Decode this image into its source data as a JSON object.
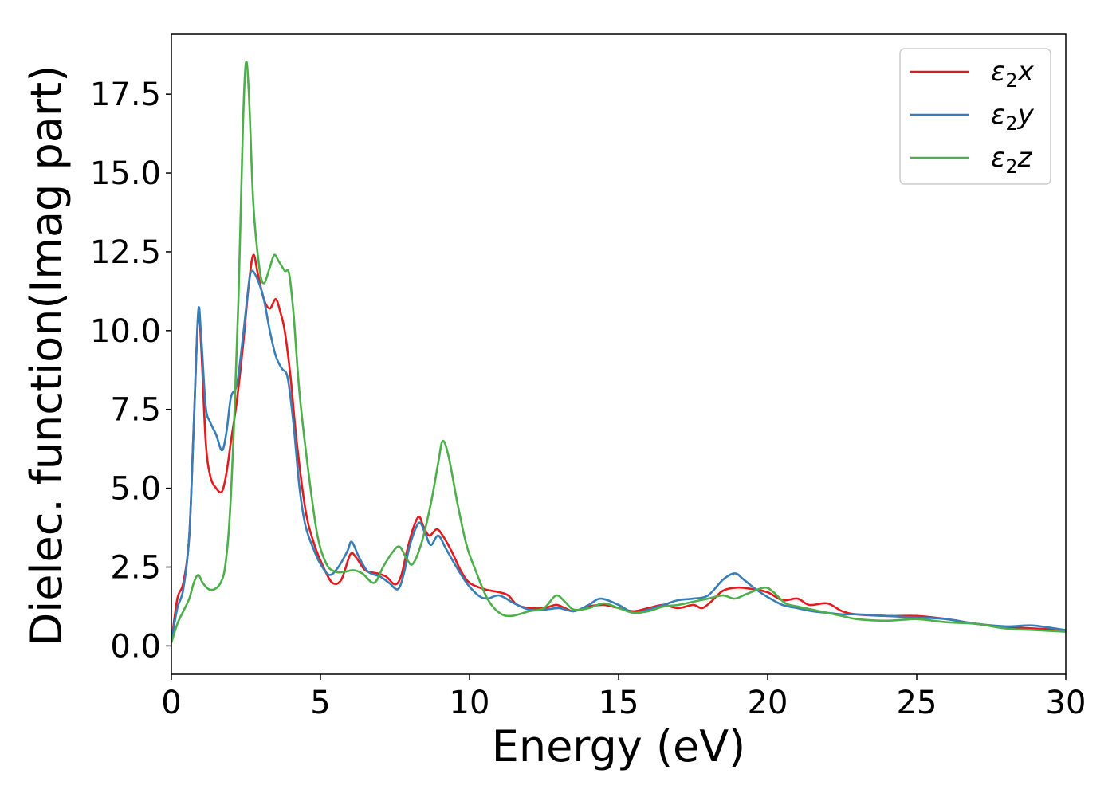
{
  "chart_data": {
    "type": "line",
    "xlabel": "Energy (eV)",
    "ylabel": "Dielec. function(Imag part)",
    "xlim": [
      0,
      30
    ],
    "ylim": [
      -0.9,
      19.4
    ],
    "xticks": [
      0,
      5,
      10,
      15,
      20,
      25,
      30
    ],
    "xtick_labels": [
      "0",
      "5",
      "10",
      "15",
      "20",
      "25",
      "30"
    ],
    "yticks": [
      0.0,
      2.5,
      5.0,
      7.5,
      10.0,
      12.5,
      15.0,
      17.5
    ],
    "ytick_labels": [
      "0.0",
      "2.5",
      "5.0",
      "7.5",
      "10.0",
      "12.5",
      "15.0",
      "17.5"
    ],
    "grid": false,
    "legend_position": "top-right",
    "series": [
      {
        "name": "ε₂x",
        "legend": {
          "base": "ε",
          "sub": "2",
          "tail": "x"
        },
        "color": "#e41a1c",
        "points": [
          [
            0,
            0.1
          ],
          [
            0.2,
            1.5
          ],
          [
            0.4,
            2.0
          ],
          [
            0.6,
            3.5
          ],
          [
            0.75,
            7.0
          ],
          [
            0.9,
            10.5
          ],
          [
            1.0,
            9.5
          ],
          [
            1.15,
            6.5
          ],
          [
            1.3,
            5.4
          ],
          [
            1.5,
            5.0
          ],
          [
            1.7,
            4.9
          ],
          [
            1.85,
            5.5
          ],
          [
            2.0,
            6.5
          ],
          [
            2.2,
            7.8
          ],
          [
            2.4,
            9.5
          ],
          [
            2.6,
            11.5
          ],
          [
            2.75,
            12.4
          ],
          [
            2.9,
            11.8
          ],
          [
            3.1,
            11.0
          ],
          [
            3.3,
            10.7
          ],
          [
            3.5,
            11.0
          ],
          [
            3.65,
            10.6
          ],
          [
            3.8,
            10.0
          ],
          [
            4.0,
            8.5
          ],
          [
            4.2,
            6.5
          ],
          [
            4.5,
            4.3
          ],
          [
            4.8,
            3.2
          ],
          [
            5.1,
            2.5
          ],
          [
            5.4,
            2.0
          ],
          [
            5.7,
            2.1
          ],
          [
            6.0,
            2.9
          ],
          [
            6.2,
            2.8
          ],
          [
            6.5,
            2.4
          ],
          [
            6.9,
            2.3
          ],
          [
            7.2,
            2.2
          ],
          [
            7.5,
            1.95
          ],
          [
            7.7,
            2.2
          ],
          [
            7.9,
            3.0
          ],
          [
            8.1,
            3.7
          ],
          [
            8.3,
            4.1
          ],
          [
            8.45,
            3.8
          ],
          [
            8.65,
            3.5
          ],
          [
            8.9,
            3.7
          ],
          [
            9.1,
            3.5
          ],
          [
            9.4,
            3.0
          ],
          [
            9.7,
            2.4
          ],
          [
            10.0,
            2.0
          ],
          [
            10.5,
            1.8
          ],
          [
            11.0,
            1.7
          ],
          [
            11.3,
            1.6
          ],
          [
            11.6,
            1.3
          ],
          [
            12.0,
            1.2
          ],
          [
            12.5,
            1.2
          ],
          [
            12.9,
            1.3
          ],
          [
            13.2,
            1.2
          ],
          [
            13.5,
            1.1
          ],
          [
            14.0,
            1.25
          ],
          [
            14.5,
            1.3
          ],
          [
            15.0,
            1.2
          ],
          [
            15.5,
            1.1
          ],
          [
            16.0,
            1.2
          ],
          [
            16.5,
            1.3
          ],
          [
            17.0,
            1.2
          ],
          [
            17.5,
            1.3
          ],
          [
            17.8,
            1.2
          ],
          [
            18.1,
            1.4
          ],
          [
            18.5,
            1.75
          ],
          [
            19.0,
            1.85
          ],
          [
            19.5,
            1.8
          ],
          [
            20.0,
            1.7
          ],
          [
            20.5,
            1.45
          ],
          [
            21.0,
            1.5
          ],
          [
            21.4,
            1.3
          ],
          [
            22.0,
            1.35
          ],
          [
            22.5,
            1.1
          ],
          [
            23.0,
            1.0
          ],
          [
            24.0,
            0.95
          ],
          [
            25.0,
            0.95
          ],
          [
            26.0,
            0.85
          ],
          [
            27.0,
            0.7
          ],
          [
            28.0,
            0.6
          ],
          [
            29.0,
            0.55
          ],
          [
            30.0,
            0.5
          ]
        ]
      },
      {
        "name": "ε₂y",
        "legend": {
          "base": "ε",
          "sub": "2",
          "tail": "y"
        },
        "color": "#377eb8",
        "points": [
          [
            0,
            0.15
          ],
          [
            0.2,
            1.2
          ],
          [
            0.4,
            1.8
          ],
          [
            0.6,
            3.5
          ],
          [
            0.75,
            7.0
          ],
          [
            0.9,
            10.6
          ],
          [
            1.0,
            9.8
          ],
          [
            1.15,
            7.6
          ],
          [
            1.3,
            7.1
          ],
          [
            1.5,
            6.7
          ],
          [
            1.7,
            6.2
          ],
          [
            1.85,
            6.8
          ],
          [
            2.0,
            7.9
          ],
          [
            2.2,
            8.3
          ],
          [
            2.4,
            9.8
          ],
          [
            2.6,
            11.5
          ],
          [
            2.7,
            11.9
          ],
          [
            2.9,
            11.6
          ],
          [
            3.1,
            11.0
          ],
          [
            3.3,
            10.0
          ],
          [
            3.5,
            9.2
          ],
          [
            3.7,
            8.8
          ],
          [
            3.9,
            8.5
          ],
          [
            4.1,
            7.0
          ],
          [
            4.3,
            5.0
          ],
          [
            4.5,
            3.8
          ],
          [
            4.8,
            3.0
          ],
          [
            5.0,
            2.6
          ],
          [
            5.3,
            2.25
          ],
          [
            5.6,
            2.5
          ],
          [
            5.9,
            3.0
          ],
          [
            6.05,
            3.3
          ],
          [
            6.3,
            2.8
          ],
          [
            6.6,
            2.35
          ],
          [
            7.0,
            2.2
          ],
          [
            7.3,
            2.0
          ],
          [
            7.6,
            1.8
          ],
          [
            7.8,
            2.3
          ],
          [
            8.0,
            3.2
          ],
          [
            8.3,
            3.9
          ],
          [
            8.5,
            3.6
          ],
          [
            8.7,
            3.2
          ],
          [
            8.95,
            3.5
          ],
          [
            9.2,
            3.1
          ],
          [
            9.5,
            2.6
          ],
          [
            9.9,
            2.0
          ],
          [
            10.3,
            1.6
          ],
          [
            10.6,
            1.5
          ],
          [
            11.0,
            1.6
          ],
          [
            11.5,
            1.35
          ],
          [
            12.0,
            1.15
          ],
          [
            12.5,
            1.15
          ],
          [
            13.0,
            1.2
          ],
          [
            13.5,
            1.1
          ],
          [
            14.0,
            1.3
          ],
          [
            14.4,
            1.5
          ],
          [
            15.0,
            1.3
          ],
          [
            15.5,
            1.05
          ],
          [
            16.0,
            1.15
          ],
          [
            16.5,
            1.3
          ],
          [
            17.0,
            1.45
          ],
          [
            17.5,
            1.5
          ],
          [
            18.0,
            1.6
          ],
          [
            18.5,
            2.1
          ],
          [
            18.9,
            2.3
          ],
          [
            19.2,
            2.1
          ],
          [
            19.6,
            1.8
          ],
          [
            20.0,
            1.55
          ],
          [
            20.5,
            1.3
          ],
          [
            21.0,
            1.2
          ],
          [
            21.5,
            1.1
          ],
          [
            22.0,
            1.05
          ],
          [
            22.5,
            1.0
          ],
          [
            23.0,
            1.0
          ],
          [
            24.0,
            0.95
          ],
          [
            25.0,
            0.9
          ],
          [
            26.0,
            0.85
          ],
          [
            27.0,
            0.7
          ],
          [
            28.0,
            0.62
          ],
          [
            28.8,
            0.65
          ],
          [
            29.3,
            0.6
          ],
          [
            30.0,
            0.5
          ]
        ]
      },
      {
        "name": "ε₂z",
        "legend": {
          "base": "ε",
          "sub": "2",
          "tail": "z"
        },
        "color": "#4daf4a",
        "points": [
          [
            0,
            0.1
          ],
          [
            0.2,
            0.7
          ],
          [
            0.4,
            1.1
          ],
          [
            0.6,
            1.5
          ],
          [
            0.75,
            2.0
          ],
          [
            0.9,
            2.25
          ],
          [
            1.05,
            2.0
          ],
          [
            1.25,
            1.8
          ],
          [
            1.45,
            1.8
          ],
          [
            1.65,
            2.0
          ],
          [
            1.8,
            2.5
          ],
          [
            1.95,
            4.0
          ],
          [
            2.1,
            7.0
          ],
          [
            2.25,
            11.0
          ],
          [
            2.4,
            16.5
          ],
          [
            2.5,
            18.5
          ],
          [
            2.6,
            17.5
          ],
          [
            2.75,
            14.0
          ],
          [
            2.95,
            12.0
          ],
          [
            3.1,
            11.5
          ],
          [
            3.3,
            12.0
          ],
          [
            3.45,
            12.4
          ],
          [
            3.6,
            12.2
          ],
          [
            3.8,
            11.9
          ],
          [
            3.95,
            11.8
          ],
          [
            4.1,
            10.5
          ],
          [
            4.3,
            8.0
          ],
          [
            4.6,
            5.5
          ],
          [
            4.9,
            3.5
          ],
          [
            5.2,
            2.6
          ],
          [
            5.5,
            2.35
          ],
          [
            5.8,
            2.35
          ],
          [
            6.1,
            2.4
          ],
          [
            6.4,
            2.3
          ],
          [
            6.8,
            2.0
          ],
          [
            7.1,
            2.5
          ],
          [
            7.4,
            2.95
          ],
          [
            7.65,
            3.15
          ],
          [
            7.9,
            2.75
          ],
          [
            8.1,
            2.6
          ],
          [
            8.4,
            3.3
          ],
          [
            8.7,
            4.5
          ],
          [
            8.95,
            5.8
          ],
          [
            9.1,
            6.5
          ],
          [
            9.3,
            6.0
          ],
          [
            9.6,
            4.5
          ],
          [
            9.9,
            3.2
          ],
          [
            10.2,
            2.4
          ],
          [
            10.6,
            1.5
          ],
          [
            11.0,
            1.05
          ],
          [
            11.4,
            0.95
          ],
          [
            12.0,
            1.1
          ],
          [
            12.5,
            1.2
          ],
          [
            12.9,
            1.6
          ],
          [
            13.2,
            1.4
          ],
          [
            13.5,
            1.15
          ],
          [
            14.0,
            1.2
          ],
          [
            14.5,
            1.35
          ],
          [
            15.0,
            1.2
          ],
          [
            15.5,
            1.05
          ],
          [
            16.0,
            1.1
          ],
          [
            16.5,
            1.25
          ],
          [
            17.0,
            1.3
          ],
          [
            17.5,
            1.4
          ],
          [
            18.0,
            1.5
          ],
          [
            18.5,
            1.6
          ],
          [
            18.9,
            1.5
          ],
          [
            19.3,
            1.65
          ],
          [
            19.9,
            1.85
          ],
          [
            20.2,
            1.7
          ],
          [
            20.6,
            1.35
          ],
          [
            21.0,
            1.25
          ],
          [
            21.5,
            1.15
          ],
          [
            22.0,
            1.05
          ],
          [
            22.5,
            0.95
          ],
          [
            23.0,
            0.85
          ],
          [
            24.0,
            0.8
          ],
          [
            25.0,
            0.85
          ],
          [
            26.0,
            0.75
          ],
          [
            27.0,
            0.7
          ],
          [
            28.0,
            0.55
          ],
          [
            29.0,
            0.5
          ],
          [
            30.0,
            0.45
          ]
        ]
      }
    ]
  }
}
